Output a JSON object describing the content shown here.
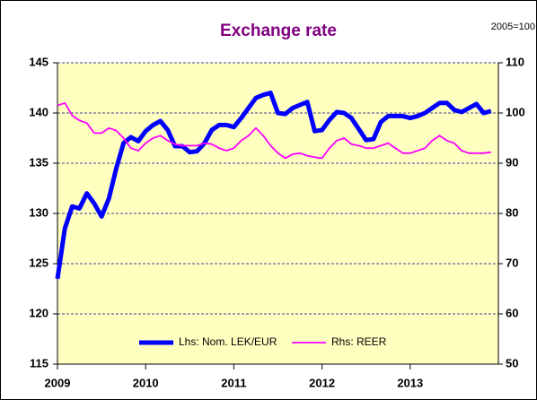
{
  "chart_data": {
    "type": "line",
    "title": "Exchange rate",
    "annotation": "2005=100",
    "x": [
      2009,
      2009.083,
      2009.167,
      2009.25,
      2009.333,
      2009.417,
      2009.5,
      2009.583,
      2009.667,
      2009.75,
      2009.833,
      2009.917,
      2010,
      2010.083,
      2010.167,
      2010.25,
      2010.333,
      2010.417,
      2010.5,
      2010.583,
      2010.667,
      2010.75,
      2010.833,
      2010.917,
      2011,
      2011.083,
      2011.167,
      2011.25,
      2011.333,
      2011.417,
      2011.5,
      2011.583,
      2011.667,
      2011.75,
      2011.833,
      2011.917,
      2012,
      2012.083,
      2012.167,
      2012.25,
      2012.333,
      2012.417,
      2012.5,
      2012.583,
      2012.667,
      2012.75,
      2012.833,
      2012.917,
      2013,
      2013.083,
      2013.167,
      2013.25,
      2013.333,
      2013.417,
      2013.5,
      2013.583,
      2013.667,
      2013.75,
      2013.833,
      2013.917
    ],
    "series": [
      {
        "name": "Lhs: Nom. LEK/EUR",
        "color": "#0000ff",
        "axis": "y",
        "values": [
          123.5,
          128.5,
          130.7,
          130.5,
          132,
          131,
          129.7,
          131.5,
          134.5,
          137,
          137.6,
          137.2,
          138.2,
          138.8,
          139.2,
          138.3,
          136.7,
          136.7,
          136.1,
          136.2,
          137,
          138.3,
          138.8,
          138.8,
          138.6,
          139.5,
          140.5,
          141.5,
          141.8,
          142,
          140,
          139.9,
          140.5,
          140.8,
          141.1,
          138.2,
          138.3,
          139.3,
          140.1,
          140,
          139.5,
          138.4,
          137.3,
          137.4,
          139.1,
          139.7,
          139.7,
          139.7,
          139.5,
          139.7,
          140,
          140.5,
          141,
          141,
          140.3,
          140.1,
          140.5,
          140.9,
          140,
          140.2
        ]
      },
      {
        "name": "Rhs: REER",
        "color": "#ff00ff",
        "axis": "y2",
        "values": [
          101.5,
          102,
          99.5,
          98.5,
          98,
          96,
          96,
          97,
          96.5,
          95,
          93,
          92.5,
          94,
          95,
          95.5,
          94.5,
          93.8,
          93.5,
          93.5,
          93.5,
          94,
          93.8,
          93,
          92.5,
          93,
          94.5,
          95.5,
          97,
          95.5,
          93.5,
          92,
          91,
          91.8,
          92,
          91.5,
          91.2,
          91,
          93,
          94.5,
          95,
          93.8,
          93.5,
          93,
          93,
          93.5,
          94,
          93,
          92,
          92,
          92.5,
          93,
          94.5,
          95.5,
          94.5,
          94,
          92.5,
          92,
          92,
          92,
          92.2
        ]
      }
    ],
    "xlim": [
      2009,
      2014
    ],
    "xticks": [
      2009,
      2010,
      2011,
      2012,
      2013
    ],
    "ylim": [
      115,
      145
    ],
    "yticks": [
      115,
      120,
      125,
      130,
      135,
      140,
      145
    ],
    "y2lim": [
      50,
      110
    ],
    "y2ticks": [
      50,
      60,
      70,
      80,
      90,
      100,
      110
    ],
    "grid": true,
    "legend": "bottom"
  }
}
